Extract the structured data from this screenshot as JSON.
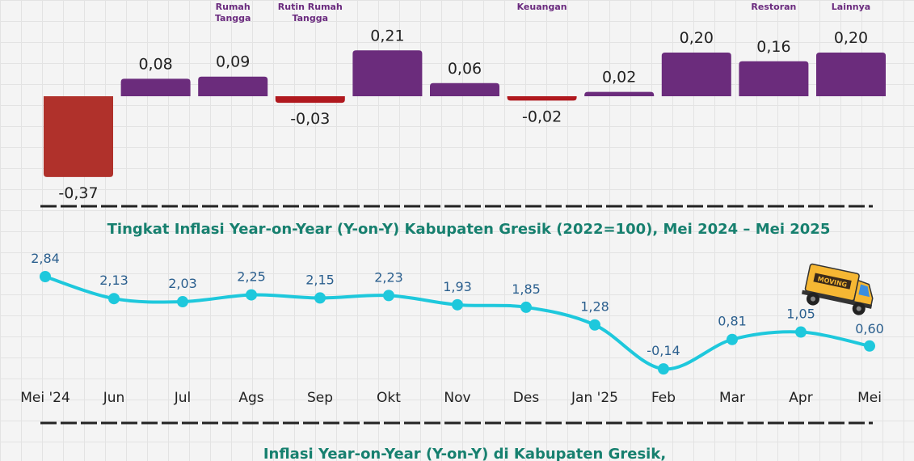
{
  "chart_data": [
    {
      "type": "bar",
      "categories": [
        "",
        "",
        "Rumah Tangga",
        "Rutin Rumah Tangga",
        "",
        "",
        "Keuangan",
        "",
        "",
        "Restoran",
        "Lainnya"
      ],
      "values": [
        -0.37,
        0.08,
        0.09,
        -0.03,
        0.21,
        0.06,
        -0.02,
        0.02,
        0.2,
        0.16,
        0.2
      ],
      "labels": [
        "-0,37",
        "0,08",
        "0,09",
        "-0,03",
        "0,21",
        "0,06",
        "-0,02",
        "0,02",
        "0,20",
        "0,16",
        "0,20"
      ],
      "colors": {
        "positive": "#6b2c7c",
        "negative_large": "#b0312b",
        "negative_small": "#b0181e"
      }
    },
    {
      "type": "line",
      "title": "Tingkat Inflasi Year-on-Year (Y-on-Y) Kabupaten Gresik (2022=100), Mei 2024 – Mei 2025",
      "categories": [
        "Mei '24",
        "Jun",
        "Jul",
        "Ags",
        "Sep",
        "Okt",
        "Nov",
        "Des",
        "Jan '25",
        "Feb",
        "Mar",
        "Apr",
        "Mei"
      ],
      "values": [
        2.84,
        2.13,
        2.03,
        2.25,
        2.15,
        2.23,
        1.93,
        1.85,
        1.28,
        -0.14,
        0.81,
        1.05,
        0.6
      ],
      "labels": [
        "2,84",
        "2,13",
        "2,03",
        "2,25",
        "2,15",
        "2,23",
        "1,93",
        "1,85",
        "1,28",
        "-0,14",
        "0,81",
        "1,05",
        "0,60"
      ],
      "color": "#1ec8dc"
    }
  ],
  "footer_title": "Inflasi Year-on-Year (Y-on-Y) di Kabupaten Gresik,",
  "truck_text": "MOVING"
}
